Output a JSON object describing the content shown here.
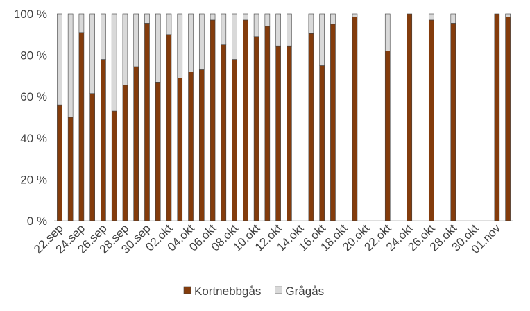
{
  "chart_data": {
    "type": "stacked_bar",
    "categories": [
      "22.sep",
      null,
      "24.sep",
      null,
      "26.sep",
      null,
      "28.sep",
      null,
      "30.sep",
      null,
      "02.okt",
      null,
      "04.okt",
      null,
      "06.okt",
      null,
      "08.okt",
      null,
      "10.okt",
      null,
      "12.okt",
      null,
      "14.okt",
      null,
      "16.okt",
      null,
      "18.okt",
      null,
      "20.okt",
      null,
      "22.okt",
      null,
      "24.okt",
      null,
      "26.okt",
      null,
      "28.okt",
      null,
      "30.okt",
      null,
      "01.nov",
      null
    ],
    "series": [
      {
        "name": "Kortnebbgås",
        "color": "#843c0c",
        "values": [
          56,
          50,
          91,
          61.5,
          78,
          53,
          65.5,
          74.5,
          95.5,
          67,
          90,
          69,
          72,
          73,
          97,
          85,
          78,
          97,
          89,
          94,
          84.5,
          84.5,
          null,
          90.5,
          75,
          95,
          null,
          98.5,
          null,
          null,
          82,
          null,
          100,
          null,
          97,
          null,
          95.5,
          null,
          null,
          null,
          100,
          98.5
        ]
      },
      {
        "name": "Grågås",
        "color": "#d9d9d9",
        "values": [
          44,
          50,
          9,
          38.5,
          22,
          47,
          34.5,
          25.5,
          4.5,
          33,
          10,
          31,
          28,
          27,
          3,
          15,
          22,
          3,
          11,
          6,
          15.5,
          15.5,
          null,
          9.5,
          25,
          5,
          null,
          1.5,
          null,
          null,
          18,
          null,
          0,
          null,
          3,
          null,
          4.5,
          null,
          null,
          null,
          0,
          1.5
        ]
      }
    ],
    "ylim": [
      0,
      100
    ],
    "yticks": [
      {
        "value": 0,
        "label": "0 %"
      },
      {
        "value": 20,
        "label": "20 %"
      },
      {
        "value": 40,
        "label": "40 %"
      },
      {
        "value": 60,
        "label": "60 %"
      },
      {
        "value": 80,
        "label": "80 %"
      },
      {
        "value": 100,
        "label": "100 %"
      }
    ],
    "legend": "bottom"
  }
}
